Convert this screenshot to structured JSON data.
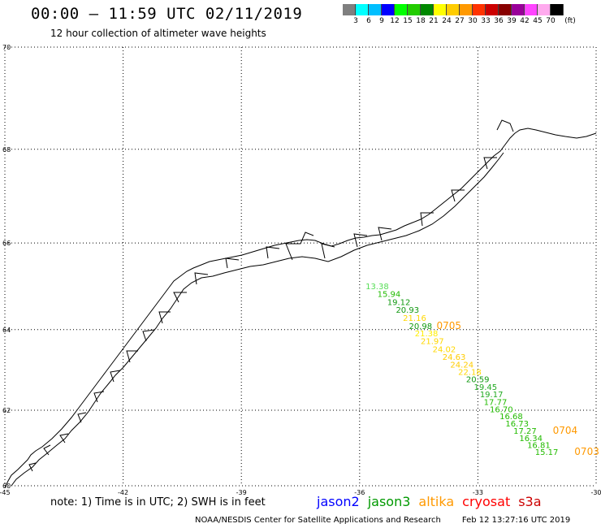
{
  "header": {
    "title": "00:00 – 11:59 UTC 02/11/2019",
    "subtitle": "12 hour collection of altimeter wave heights"
  },
  "colorbar": {
    "unit_label": "(ft)",
    "bins": [
      {
        "label": "3",
        "color": "#7f7f7f"
      },
      {
        "label": "6",
        "color": "#00ffff"
      },
      {
        "label": "9",
        "color": "#00bfff"
      },
      {
        "label": "12",
        "color": "#0000ff"
      },
      {
        "label": "15",
        "color": "#00ff00"
      },
      {
        "label": "18",
        "color": "#22cc00"
      },
      {
        "label": "21",
        "color": "#008800"
      },
      {
        "label": "24",
        "color": "#ffff00"
      },
      {
        "label": "27",
        "color": "#ffcc00"
      },
      {
        "label": "30",
        "color": "#ff9900"
      },
      {
        "label": "33",
        "color": "#ff3300"
      },
      {
        "label": "36",
        "color": "#cc0000"
      },
      {
        "label": "39",
        "color": "#880000"
      },
      {
        "label": "42",
        "color": "#990099"
      },
      {
        "label": "45",
        "color": "#ff44ff"
      },
      {
        "label": "70",
        "color": "#ffaaee"
      },
      {
        "label": "",
        "color": "#000000"
      }
    ]
  },
  "map": {
    "lon_ticks": [
      "-45",
      "-42",
      "-39",
      "-36",
      "-33",
      "-30"
    ],
    "lat_ticks": [
      "70",
      "68",
      "66",
      "64",
      "62",
      "60"
    ],
    "lon_range": [
      -45,
      -30
    ],
    "lat_range": [
      60,
      70
    ],
    "observations": [
      {
        "value": "13.38",
        "color": "#55dd55",
        "lon": -35.85,
        "lat": 64.95
      },
      {
        "value": "15.94",
        "color": "#22bb00",
        "lon": -35.55,
        "lat": 64.77
      },
      {
        "value": "19.12",
        "color": "#119911",
        "lon": -35.3,
        "lat": 64.58
      },
      {
        "value": "20.93",
        "color": "#119911",
        "lon": -35.08,
        "lat": 64.4
      },
      {
        "value": "21.16",
        "color": "#ffd700",
        "lon": -34.9,
        "lat": 64.21
      },
      {
        "value": "20.98",
        "color": "#119911",
        "lon": -34.75,
        "lat": 64.02
      },
      {
        "value": "21.38",
        "color": "#ffee00",
        "lon": -34.6,
        "lat": 63.84
      },
      {
        "value": "21.97",
        "color": "#ffd700",
        "lon": -34.45,
        "lat": 63.65
      },
      {
        "value": "24.02",
        "color": "#ffd700",
        "lon": -34.15,
        "lat": 63.46
      },
      {
        "value": "24.63",
        "color": "#ffcc00",
        "lon": -33.9,
        "lat": 63.27
      },
      {
        "value": "24.24",
        "color": "#ffcc00",
        "lon": -33.7,
        "lat": 63.08
      },
      {
        "value": "22.18",
        "color": "#ffd700",
        "lon": -33.5,
        "lat": 62.89
      },
      {
        "value": "20.59",
        "color": "#119911",
        "lon": -33.3,
        "lat": 62.71
      },
      {
        "value": "19.45",
        "color": "#22aa22",
        "lon": -33.1,
        "lat": 62.52
      },
      {
        "value": "19.17",
        "color": "#22aa22",
        "lon": -32.95,
        "lat": 62.33
      },
      {
        "value": "17.77",
        "color": "#22bb00",
        "lon": -32.85,
        "lat": 62.14
      },
      {
        "value": "16.70",
        "color": "#22bb00",
        "lon": -32.7,
        "lat": 61.95
      },
      {
        "value": "16.68",
        "color": "#22bb00",
        "lon": -32.45,
        "lat": 61.77
      },
      {
        "value": "16.73",
        "color": "#22bb00",
        "lon": -32.3,
        "lat": 61.58
      },
      {
        "value": "17.27",
        "color": "#22bb00",
        "lon": -32.1,
        "lat": 61.39
      },
      {
        "value": "16.34",
        "color": "#22bb00",
        "lon": -31.95,
        "lat": 61.2
      },
      {
        "value": "16.81",
        "color": "#22bb00",
        "lon": -31.75,
        "lat": 61.02
      },
      {
        "value": "15.17",
        "color": "#22bb00",
        "lon": -31.55,
        "lat": 60.83
      }
    ],
    "pass_labels": [
      {
        "text": "0705",
        "color": "#ff9900",
        "lon": -34.05,
        "lat": 64.02
      },
      {
        "text": "0704",
        "color": "#ff9900",
        "lon": -31.1,
        "lat": 61.39
      },
      {
        "text": "0703",
        "color": "#ff9900",
        "lon": -30.55,
        "lat": 60.83
      }
    ]
  },
  "footer": {
    "note": "note:  1) Time is in UTC;  2) SWH is in feet",
    "satellites": [
      {
        "name": "jason2",
        "color": "#0000ff"
      },
      {
        "name": "jason3",
        "color": "#009900"
      },
      {
        "name": "altika",
        "color": "#ff9900"
      },
      {
        "name": "cryosat",
        "color": "#ff0000"
      },
      {
        "name": "s3a",
        "color": "#cc0000"
      }
    ],
    "credit": "NOAA/NESDIS Center for Satellite Applications and Research",
    "timestamp": "Feb 12 13:27:16 UTC 2019"
  }
}
